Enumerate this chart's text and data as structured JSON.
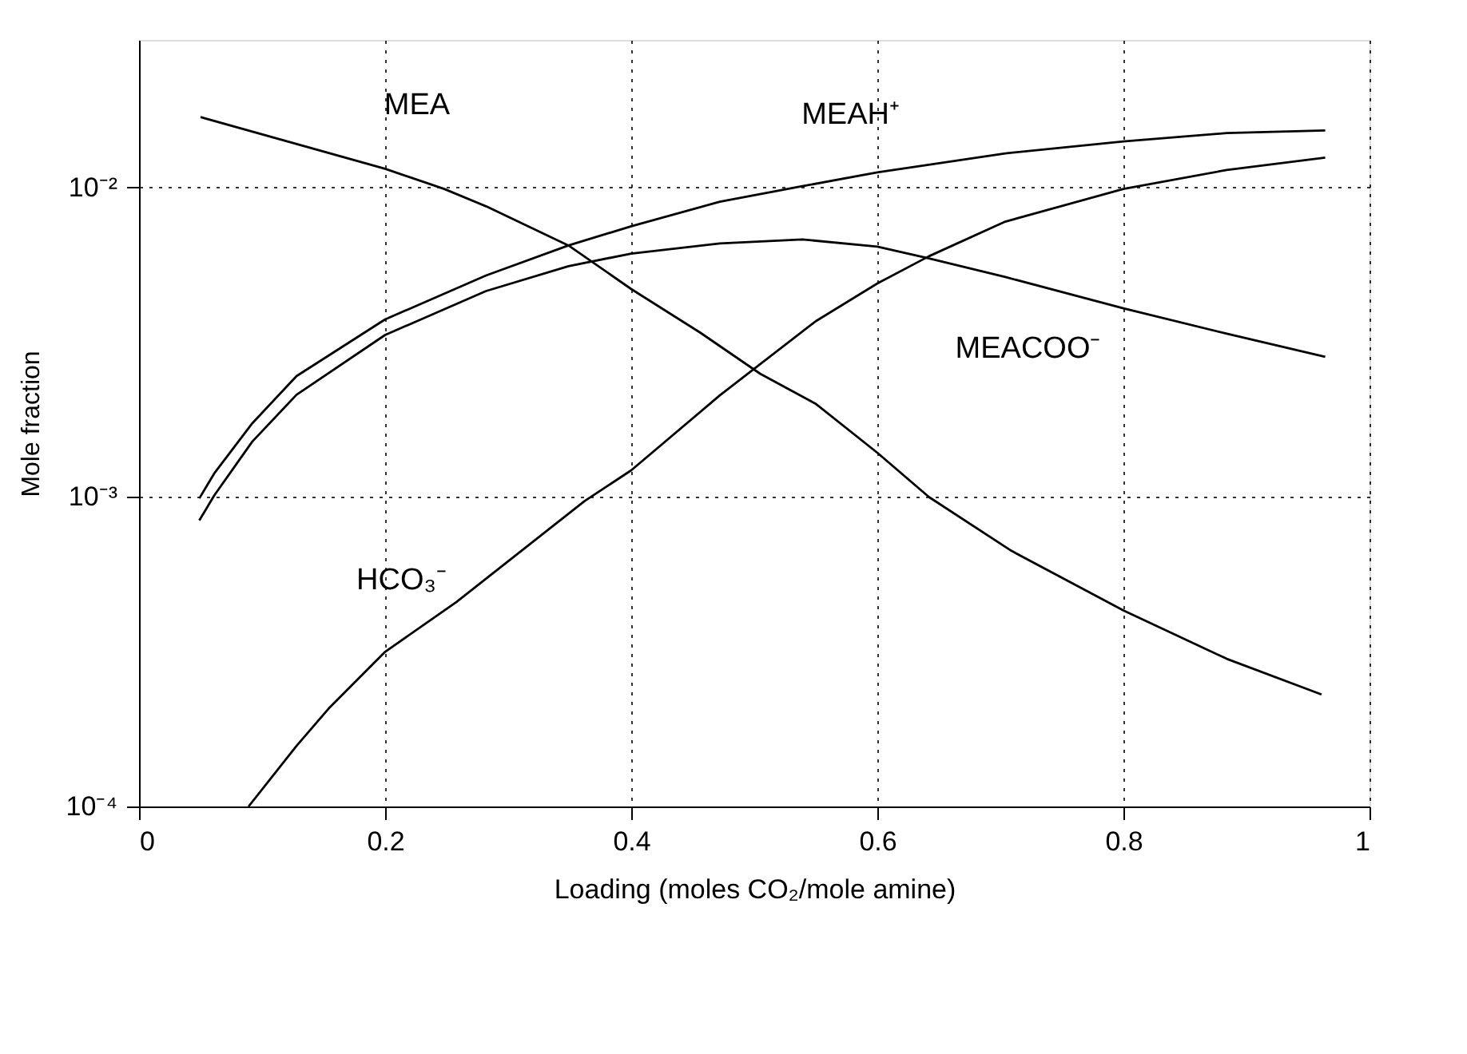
{
  "chart_data": {
    "type": "line",
    "xlabel": "Loading (moles CO₂/mole amine)",
    "ylabel": "Mole fraction",
    "xlim": [
      0,
      1
    ],
    "xticks": [
      0,
      0.2,
      0.4,
      0.6,
      0.8,
      1
    ],
    "ylim": [
      0.0001,
      0.03
    ],
    "yticks": [
      {
        "value": 0.0001,
        "label": "10⁻⁴"
      },
      {
        "value": 0.001,
        "label": "10⁻³"
      },
      {
        "value": 0.01,
        "label": "10⁻²"
      }
    ],
    "log": "y",
    "grid": true,
    "marker": "none",
    "line_style": "solid",
    "series": [
      {
        "name": "MEA",
        "color": "#000000",
        "x": [
          0.05,
          0.2,
          0.248,
          0.282,
          0.349,
          0.4,
          0.456,
          0.505,
          0.55,
          0.6,
          0.642,
          0.709,
          0.8,
          0.884,
          0.961
        ],
        "values": [
          0.0169,
          0.0115,
          0.0099,
          0.0087,
          0.0065,
          0.0047,
          0.0034,
          0.0025,
          0.002,
          0.00139,
          0.001,
          0.00067,
          0.00043,
          0.0003,
          0.00023
        ]
      },
      {
        "name": "MEAH⁺",
        "color": "#000000",
        "x": [
          0.049,
          0.061,
          0.092,
          0.128,
          0.2,
          0.282,
          0.349,
          0.4,
          0.472,
          0.539,
          0.6,
          0.704,
          0.8,
          0.884,
          0.964
        ],
        "values": [
          0.00099,
          0.00119,
          0.00173,
          0.00246,
          0.00375,
          0.0052,
          0.0065,
          0.0075,
          0.009,
          0.0101,
          0.0112,
          0.0129,
          0.0141,
          0.015,
          0.0153
        ]
      },
      {
        "name": "MEACOO⁻",
        "color": "#000000",
        "x": [
          0.049,
          0.061,
          0.092,
          0.128,
          0.2,
          0.282,
          0.349,
          0.4,
          0.472,
          0.539,
          0.6,
          0.642,
          0.704,
          0.8,
          0.884,
          0.964
        ],
        "values": [
          0.00084,
          0.00101,
          0.00151,
          0.00214,
          0.00334,
          0.00463,
          0.00557,
          0.00612,
          0.0066,
          0.0068,
          0.00644,
          0.0059,
          0.00514,
          0.00407,
          0.00337,
          0.00284
        ]
      },
      {
        "name": "HCO₃⁻",
        "color": "#000000",
        "x": [
          0.089,
          0.128,
          0.154,
          0.2,
          0.258,
          0.362,
          0.4,
          0.472,
          0.55,
          0.6,
          0.642,
          0.704,
          0.8,
          0.884,
          0.964
        ],
        "values": [
          0.0001,
          0.000157,
          0.000207,
          0.000316,
          0.000458,
          0.00097,
          0.00122,
          0.00213,
          0.0037,
          0.0049,
          0.006,
          0.00776,
          0.0099,
          0.0114,
          0.0125
        ]
      }
    ]
  }
}
